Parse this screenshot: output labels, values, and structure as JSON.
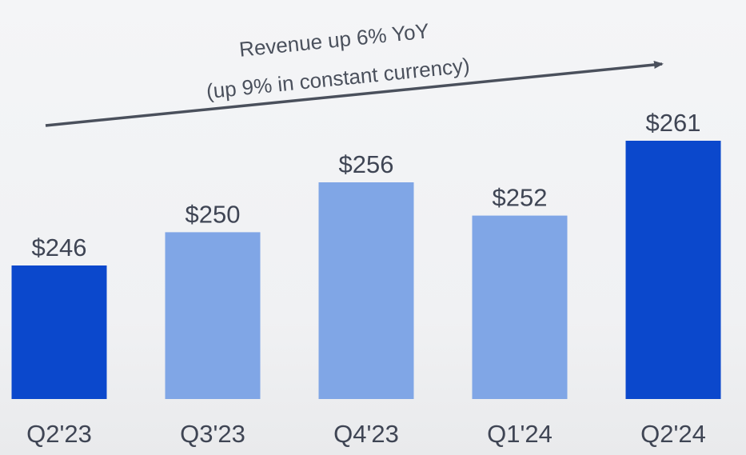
{
  "chart_data": {
    "type": "bar",
    "categories": [
      "Q2'23",
      "Q3'23",
      "Q4'23",
      "Q1'24",
      "Q2'24"
    ],
    "values": [
      246,
      250,
      256,
      252,
      261
    ],
    "value_labels": [
      "$246",
      "$250",
      "$256",
      "$252",
      "$261"
    ],
    "bar_colors": [
      "#0b48cc",
      "#80a6e6",
      "#80a6e6",
      "#80a6e6",
      "#0b48cc"
    ],
    "annotation": {
      "line1": "Revenue up 6% YoY",
      "line2": "(up 9% in constant currency)"
    },
    "arrow_color": "#4a505c",
    "grid": false,
    "legend": "none"
  }
}
